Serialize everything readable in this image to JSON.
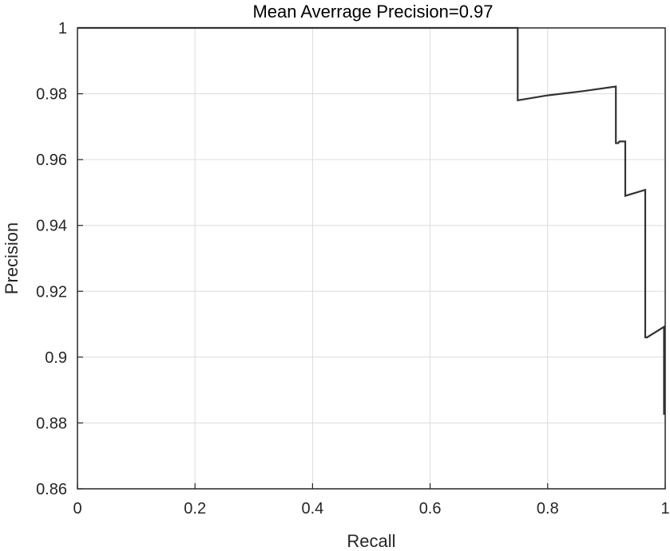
{
  "chart_data": {
    "type": "line",
    "title": "Mean Averrage Precision=0.97",
    "xlabel": "Recall",
    "ylabel": "Precision",
    "xlim": [
      0,
      1
    ],
    "ylim": [
      0.86,
      1
    ],
    "xticks": [
      0,
      0.2,
      0.4,
      0.6,
      0.8,
      1
    ],
    "xtick_labels": [
      "0",
      "0.2",
      "0.4",
      "0.6",
      "0.8",
      "1"
    ],
    "yticks": [
      0.86,
      0.88,
      0.9,
      0.92,
      0.94,
      0.96,
      0.98,
      1
    ],
    "ytick_labels": [
      "0.86",
      "0.88",
      "0.9",
      "0.92",
      "0.94",
      "0.96",
      "0.98",
      "1"
    ],
    "grid": true,
    "line_color": "#333333",
    "grid_color": "#dcdcdc",
    "series": [
      {
        "x": [
          0,
          0.749,
          0.749,
          0.8,
          0.86,
          0.916,
          0.916,
          0.92,
          0.922,
          0.932,
          0.932,
          0.966,
          0.966,
          0.969,
          0.998,
          0.998
        ],
        "y": [
          1.0,
          1.0,
          0.978,
          0.9795,
          0.9808,
          0.9822,
          0.965,
          0.965,
          0.9655,
          0.9655,
          0.949,
          0.9508,
          0.906,
          0.906,
          0.9092,
          0.8825
        ]
      }
    ]
  }
}
